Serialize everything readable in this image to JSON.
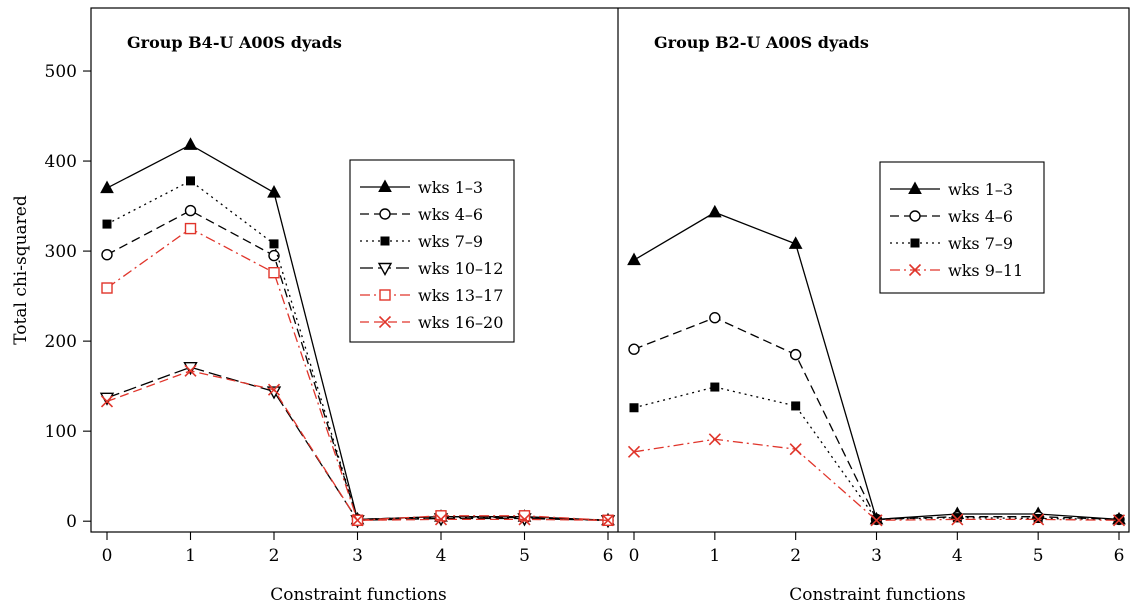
{
  "chart_data": [
    {
      "type": "line",
      "title": "Group B4-U A00S dyads",
      "xlabel": "Constraint functions",
      "ylabel": "Total chi-squared",
      "x": [
        0,
        1,
        2,
        3,
        4,
        5,
        6
      ],
      "xlim": [
        -0.25,
        6.2
      ],
      "ylim": [
        -12,
        570
      ],
      "yticks": [
        0,
        100,
        200,
        300,
        400,
        500
      ],
      "legend_position": "right",
      "series": [
        {
          "name": "wks 1–3",
          "values": [
            370,
            418,
            365,
            2,
            5,
            5,
            1
          ],
          "color": "#000000",
          "dash": "solid",
          "marker": "triangle-filled"
        },
        {
          "name": "wks 4–6",
          "values": [
            296,
            345,
            295,
            2,
            5,
            4,
            1
          ],
          "color": "#000000",
          "dash": "dashed",
          "marker": "circle-open"
        },
        {
          "name": "wks 7–9",
          "values": [
            330,
            378,
            308,
            2,
            4,
            4,
            1
          ],
          "color": "#000000",
          "dash": "dotted",
          "marker": "square-filled"
        },
        {
          "name": "wks 10–12",
          "values": [
            137,
            171,
            144,
            1,
            3,
            3,
            1
          ],
          "color": "#000000",
          "dash": "longdash",
          "marker": "triangle-open-down"
        },
        {
          "name": "wks 13–17",
          "values": [
            259,
            325,
            276,
            1,
            6,
            6,
            1
          ],
          "color": "#e0352b",
          "dash": "dashdot",
          "marker": "square-open"
        },
        {
          "name": "wks 16–20",
          "values": [
            133,
            167,
            146,
            1,
            2,
            2,
            1
          ],
          "color": "#e0352b",
          "dash": "dashed",
          "marker": "x"
        }
      ]
    },
    {
      "type": "line",
      "title": "Group B2-U A00S dyads",
      "xlabel": "Constraint functions",
      "ylabel": "",
      "x": [
        0,
        1,
        2,
        3,
        4,
        5,
        6
      ],
      "xlim": [
        -0.25,
        6.2
      ],
      "ylim": [
        -12,
        570
      ],
      "legend_position": "right",
      "series": [
        {
          "name": "wks 1–3",
          "values": [
            290,
            343,
            308,
            2,
            8,
            8,
            2
          ],
          "color": "#000000",
          "dash": "solid",
          "marker": "triangle-filled"
        },
        {
          "name": "wks 4–6",
          "values": [
            191,
            226,
            185,
            2,
            5,
            5,
            2
          ],
          "color": "#000000",
          "dash": "dashed",
          "marker": "circle-open"
        },
        {
          "name": "wks 7–9",
          "values": [
            126,
            149,
            128,
            2,
            4,
            3,
            2
          ],
          "color": "#000000",
          "dash": "dotted",
          "marker": "square-filled"
        },
        {
          "name": "wks 9–11",
          "values": [
            77,
            91,
            80,
            1,
            2,
            2,
            1
          ],
          "color": "#e0352b",
          "dash": "dashdot",
          "marker": "x"
        }
      ]
    }
  ]
}
